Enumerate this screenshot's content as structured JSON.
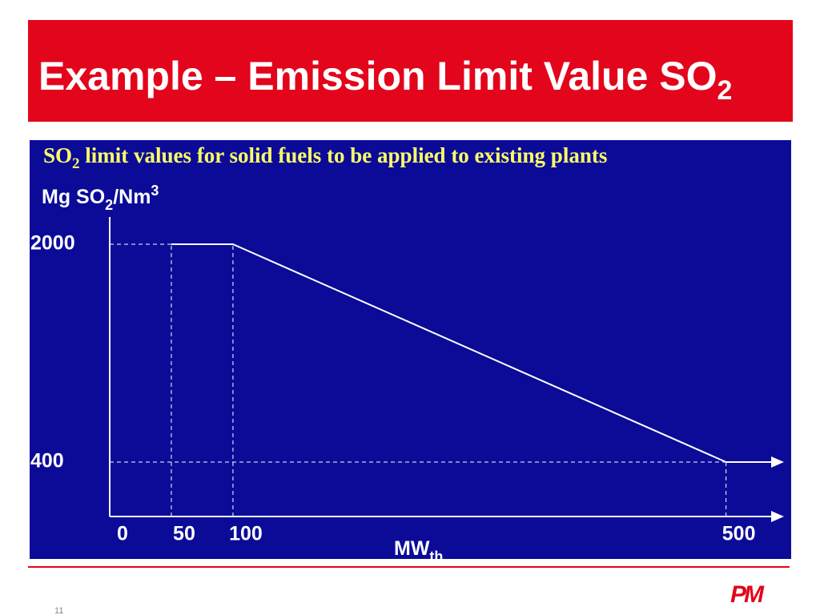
{
  "slide": {
    "title": [
      "Example – Emission Limit Value SO",
      "2"
    ],
    "page_number": "11",
    "logo": "PM"
  },
  "chart_data": {
    "type": "line",
    "title": [
      "SO",
      "2",
      " limit values for solid fuels to be applied to existing plants"
    ],
    "y_label": [
      "Mg SO",
      "2",
      "/Nm",
      "3"
    ],
    "x_label": [
      "MW",
      "th"
    ],
    "x": [
      50,
      100,
      500
    ],
    "series": [
      {
        "color": "#ffffff",
        "values": [
          2000,
          2000,
          400
        ]
      }
    ],
    "xlim": [
      0,
      547
    ],
    "xticks": [
      0,
      50,
      100,
      500
    ],
    "ylim": [
      0,
      2200
    ],
    "yticks": [
      400,
      2000
    ],
    "grid": true,
    "grid_style": "dashed"
  }
}
